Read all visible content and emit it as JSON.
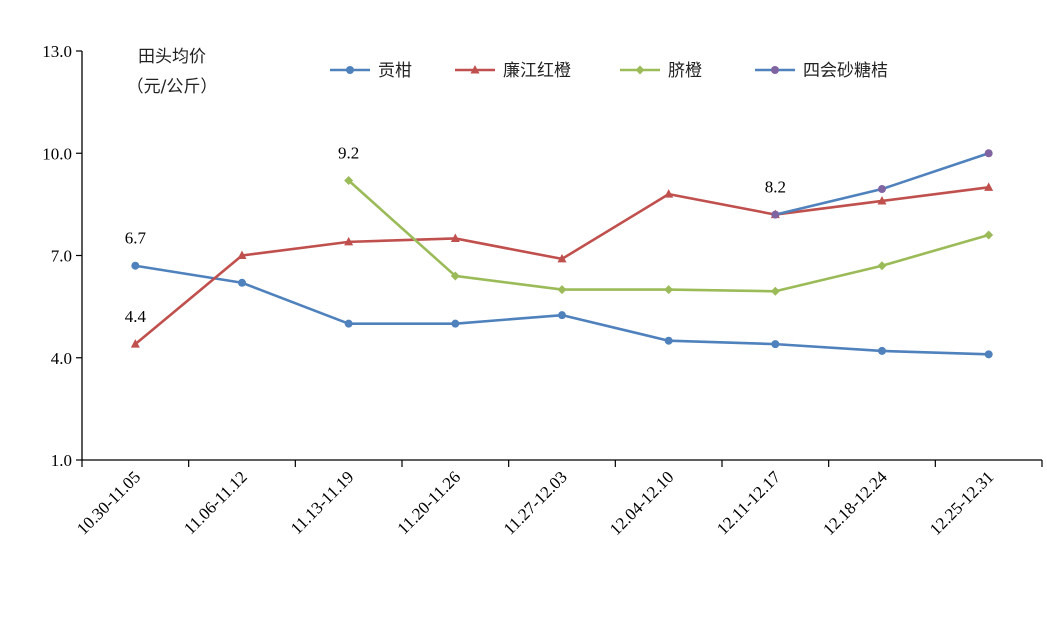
{
  "chart_data": {
    "type": "line",
    "unit_label_lines": [
      "田头均价",
      "（元/公斤）"
    ],
    "categories": [
      "10.30-11.05",
      "11.06-11.12",
      "11.13-11.19",
      "11.20-11.26",
      "11.27-12.03",
      "12.04-12.10",
      "12.11-12.17",
      "12.18-12.24",
      "12.25-12.31"
    ],
    "y_ticks": [
      "1.0",
      "4.0",
      "7.0",
      "10.0",
      "13.0"
    ],
    "ylim": [
      1.0,
      13.0
    ],
    "grid": false,
    "legend_position": "top",
    "series": [
      {
        "name": "贡柑",
        "color": "#4F81BD",
        "marker": "circle",
        "values": [
          6.7,
          6.2,
          5.0,
          5.0,
          5.25,
          4.5,
          4.4,
          4.2,
          4.1
        ]
      },
      {
        "name": "廉江红橙",
        "color": "#C0504D",
        "marker": "triangle",
        "values": [
          4.4,
          7.0,
          7.4,
          7.5,
          6.9,
          8.8,
          8.2,
          8.6,
          9.0
        ]
      },
      {
        "name": "脐橙",
        "color": "#9BBB59",
        "marker": "diamond",
        "values": [
          null,
          null,
          9.2,
          6.4,
          6.0,
          6.0,
          5.95,
          6.7,
          7.6
        ]
      },
      {
        "name": "四会砂糖桔",
        "color": "#4F81BD",
        "marker_color": "#8064A2",
        "marker": "circle",
        "values": [
          null,
          null,
          null,
          null,
          null,
          null,
          8.2,
          8.95,
          10.0
        ]
      }
    ],
    "annotations": [
      {
        "text": "6.7",
        "series": 0,
        "index": 0
      },
      {
        "text": "4.4",
        "series": 1,
        "index": 0
      },
      {
        "text": "9.2",
        "series": 2,
        "index": 2
      },
      {
        "text": "8.2",
        "series": 3,
        "index": 6
      }
    ]
  }
}
